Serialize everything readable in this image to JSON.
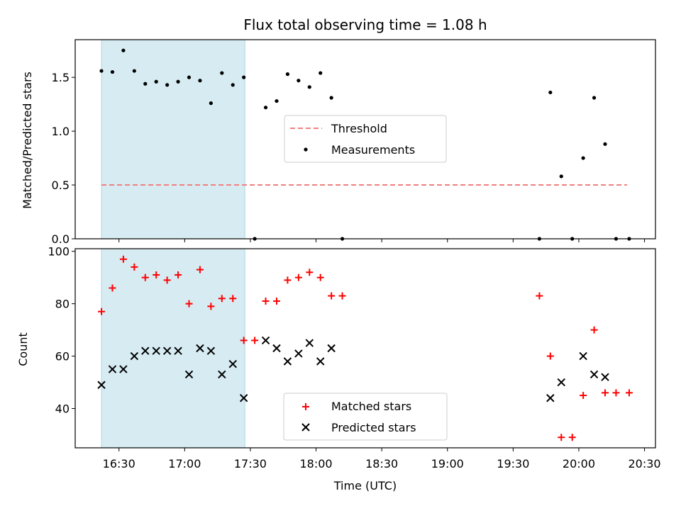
{
  "chart_data": {
    "type": "scatter",
    "title": "Flux total observing time = 1.08 h",
    "xlabel": "Time (UTC)",
    "x_tick_labels": [
      "16:30",
      "17:00",
      "17:30",
      "18:00",
      "18:30",
      "19:00",
      "19:30",
      "20:00",
      "20:30"
    ],
    "x_tick_minutes": [
      990,
      1020,
      1050,
      1080,
      1110,
      1140,
      1170,
      1200,
      1230
    ],
    "xlim_minutes": [
      970,
      1235
    ],
    "shaded_span_minutes": [
      982,
      1047.5
    ],
    "colors": {
      "shade": "#add8e6",
      "threshold": "#f08080",
      "matched": "#ff0000",
      "predicted": "#000000",
      "measurement": "#000000"
    },
    "panels": [
      {
        "id": "ratio",
        "ylabel": "Matched/Predicted stars",
        "ylim": [
          0,
          1.85
        ],
        "y_ticks": [
          0.0,
          0.5,
          1.0,
          1.5
        ],
        "y_tick_labels": [
          "0.0",
          "0.5",
          "1.0",
          "1.5"
        ],
        "legend": [
          "Threshold",
          "Measurements"
        ],
        "threshold": {
          "name": "Threshold",
          "value": 0.5,
          "x_range": [
            982,
            1222
          ]
        },
        "measurements": {
          "name": "Measurements",
          "x": [
            982,
            987,
            992,
            997,
            1002,
            1007,
            1012,
            1017,
            1022,
            1027,
            1032,
            1037,
            1042,
            1047,
            1052,
            1057,
            1062,
            1067,
            1072,
            1077,
            1082,
            1087,
            1092,
            1182,
            1187,
            1192,
            1197,
            1202,
            1207,
            1212,
            1217,
            1223
          ],
          "y": [
            1.56,
            1.55,
            1.75,
            1.56,
            1.44,
            1.46,
            1.43,
            1.46,
            1.5,
            1.47,
            1.26,
            1.54,
            1.43,
            1.5,
            0.0,
            1.22,
            1.28,
            1.53,
            1.47,
            1.41,
            1.54,
            1.31,
            0.0,
            0.0,
            1.36,
            0.58,
            0.0,
            0.75,
            1.31,
            0.88,
            0.0,
            0.0
          ]
        }
      },
      {
        "id": "count",
        "ylabel": "Count",
        "ylim": [
          25,
          101
        ],
        "y_ticks": [
          40,
          60,
          80,
          100
        ],
        "y_tick_labels": [
          "40",
          "60",
          "80",
          "100"
        ],
        "legend": [
          "Matched stars",
          "Predicted stars"
        ],
        "matched": {
          "name": "Matched stars",
          "x": [
            982,
            987,
            992,
            997,
            1002,
            1007,
            1012,
            1017,
            1022,
            1027,
            1032,
            1037,
            1042,
            1047,
            1052,
            1057,
            1062,
            1067,
            1072,
            1077,
            1082,
            1087,
            1092,
            1182,
            1187,
            1192,
            1197,
            1202,
            1207,
            1212,
            1217,
            1223
          ],
          "y": [
            77,
            86,
            97,
            94,
            90,
            91,
            89,
            91,
            80,
            93,
            79,
            82,
            82,
            66,
            66,
            81,
            81,
            89,
            90,
            92,
            90,
            83,
            83,
            83,
            60,
            29,
            29,
            45,
            70,
            46,
            46,
            46
          ]
        },
        "predicted": {
          "name": "Predicted stars",
          "x": [
            982,
            987,
            992,
            997,
            1002,
            1007,
            1012,
            1017,
            1022,
            1027,
            1032,
            1037,
            1042,
            1047,
            1057,
            1062,
            1067,
            1072,
            1077,
            1082,
            1087,
            1187,
            1192,
            1202,
            1207,
            1212
          ],
          "y": [
            49,
            55,
            55,
            60,
            62,
            62,
            62,
            62,
            53,
            63,
            62,
            53,
            57,
            44,
            66,
            63,
            58,
            61,
            65,
            58,
            63,
            44,
            50,
            60,
            53,
            52
          ]
        }
      }
    ]
  }
}
